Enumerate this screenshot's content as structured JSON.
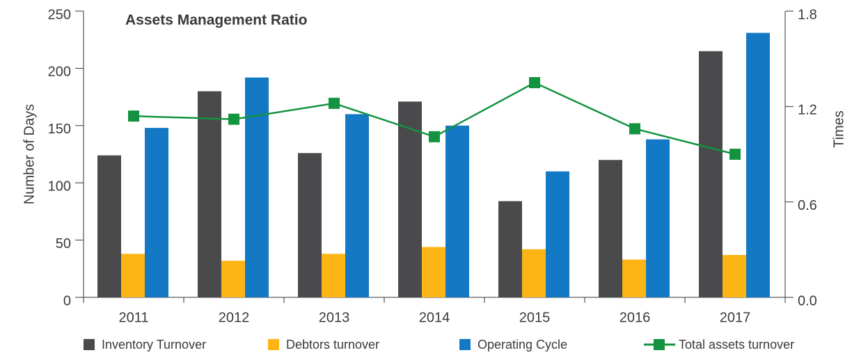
{
  "chart_data": {
    "type": "bar",
    "title": "Assets Management Ratio",
    "ylabel": "Number of Days",
    "y2label": "Times",
    "categories": [
      "2011",
      "2012",
      "2013",
      "2014",
      "2015",
      "2016",
      "2017"
    ],
    "series": [
      {
        "name": "Inventory Turnover",
        "type": "bar",
        "color": "#4a4a4c",
        "values": [
          124,
          180,
          126,
          171,
          84,
          120,
          215
        ]
      },
      {
        "name": "Debtors turnover",
        "type": "bar",
        "color": "#fdb515",
        "values": [
          38,
          32,
          38,
          44,
          42,
          33,
          37
        ]
      },
      {
        "name": "Operating Cycle",
        "type": "bar",
        "color": "#1479c4",
        "values": [
          148,
          192,
          160,
          150,
          110,
          138,
          231
        ]
      },
      {
        "name": "Total assets turnover",
        "type": "line",
        "axis": "y2",
        "color": "#13933f",
        "values": [
          1.14,
          1.12,
          1.22,
          1.01,
          1.35,
          1.06,
          0.9
        ]
      }
    ],
    "ylim": [
      0,
      250
    ],
    "yticks": [
      0,
      50,
      100,
      150,
      200,
      250
    ],
    "y2lim": [
      0,
      1.8
    ],
    "y2ticks": [
      {
        "value": 0,
        "label": "0.0"
      },
      0.6,
      1.2,
      1.8
    ]
  }
}
